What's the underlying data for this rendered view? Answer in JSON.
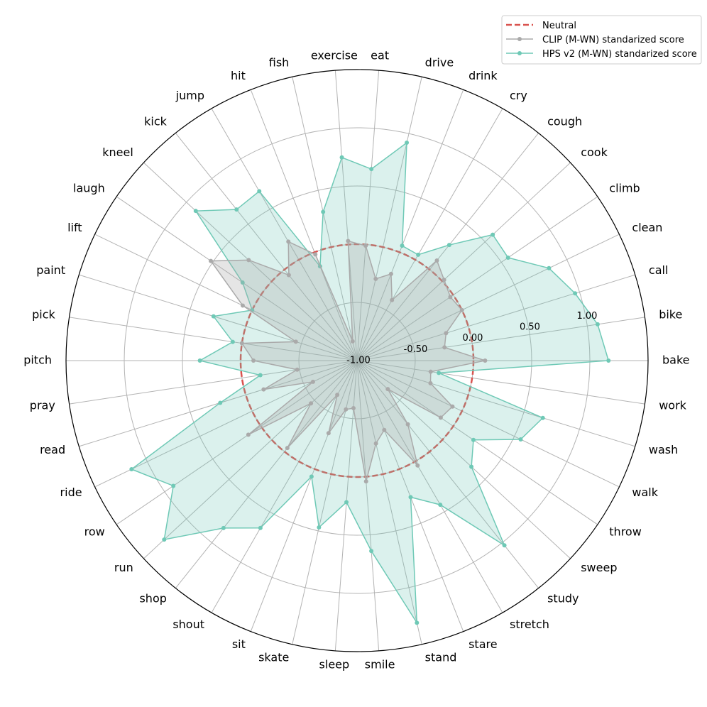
{
  "chart_data": {
    "type": "radar",
    "categories": [
      "bake",
      "bike",
      "call",
      "clean",
      "climb",
      "cook",
      "cough",
      "cry",
      "drink",
      "drive",
      "eat",
      "exercise",
      "fish",
      "hit",
      "jump",
      "kick",
      "kneel",
      "laugh",
      "lift",
      "paint",
      "pick",
      "pitch",
      "pray",
      "read",
      "ride",
      "row",
      "run",
      "shop",
      "shout",
      "sit",
      "skate",
      "sleep",
      "smile",
      "stand",
      "stare",
      "stretch",
      "study",
      "sweep",
      "throw",
      "walk",
      "wash",
      "work"
    ],
    "r_ticks": [
      -1.0,
      -0.5,
      0.0,
      0.5,
      1.0
    ],
    "r_tick_labels": [
      "-1.00",
      "-0.50",
      "0.00",
      "0.50",
      "1.00"
    ],
    "rlim": [
      -1.0,
      1.5
    ],
    "neutral": 0.0,
    "grid": true,
    "legend_position": "top-right",
    "series": [
      {
        "name": "CLIP (M-WN) standarized score",
        "color": "#aaaaaa",
        "values": [
          0.1,
          -0.24,
          -0.2,
          0.0,
          -0.03,
          0.02,
          0.1,
          -0.4,
          -0.2,
          -0.28,
          -0.01,
          0.03,
          -0.83,
          -0.02,
          0.18,
          -0.06,
          0.27,
          0.52,
          0.09,
          -0.45,
          0.0,
          -0.11,
          -0.48,
          -0.16,
          -0.58,
          0.13,
          -0.46,
          -0.04,
          -0.66,
          -0.33,
          -0.57,
          -0.59,
          0.04,
          -0.27,
          -0.36,
          0.04,
          -0.3,
          -0.64,
          -0.13,
          -0.09,
          -0.34,
          -0.36
        ]
      },
      {
        "name": "HPS v2 (M-WN) standarized score",
        "color": "#6fc9b6",
        "values": [
          1.16,
          1.09,
          0.96,
          0.83,
          0.57,
          0.59,
          0.27,
          0.05,
          0.06,
          0.92,
          0.65,
          0.75,
          0.31,
          -0.13,
          0.68,
          0.66,
          0.89,
          0.19,
          0.0,
          0.29,
          0.08,
          0.35,
          -0.16,
          0.23,
          1.15,
          0.91,
          1.26,
          0.84,
          0.66,
          0.07,
          0.47,
          0.22,
          0.64,
          1.31,
          0.26,
          0.43,
          1.03,
          0.34,
          0.21,
          0.56,
          0.67,
          -0.29
        ]
      }
    ],
    "neutral_series_name": "Neutral",
    "neutral_color": "#d9534f"
  }
}
